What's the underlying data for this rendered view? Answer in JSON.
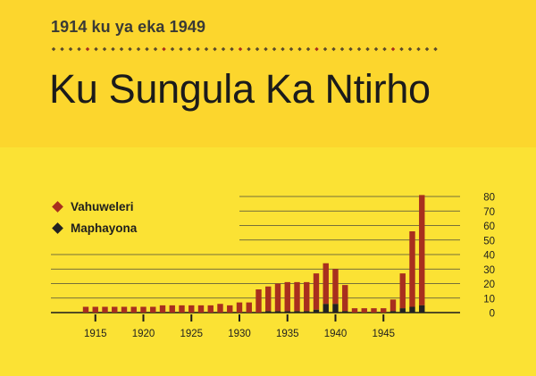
{
  "header": {
    "subtitle": "1914 ku ya eka 1949",
    "title": "Ku Sungula Ka Ntirho"
  },
  "colors": {
    "background": "#fbe234",
    "band": "#fcd62d",
    "ink": "#1b1b1b",
    "vahuweleri": "#a82f1e",
    "maphayona": "#222222"
  },
  "chart_data": {
    "type": "bar",
    "stacked": true,
    "x_axis": {
      "range": [
        1914,
        1949
      ],
      "tick_labels": [
        "1915",
        "1920",
        "1925",
        "1930",
        "1935",
        "1940",
        "1945"
      ],
      "tick_values": [
        1915,
        1920,
        1925,
        1930,
        1935,
        1940,
        1945
      ]
    },
    "y_axis": {
      "range": [
        0,
        80
      ],
      "tick_labels": [
        "0",
        "10",
        "20",
        "30",
        "40",
        "50",
        "60",
        "70",
        "80"
      ],
      "position": "right",
      "grid": true
    },
    "legend_position": "left",
    "x": [
      1914,
      1915,
      1916,
      1917,
      1918,
      1919,
      1920,
      1921,
      1922,
      1923,
      1924,
      1925,
      1926,
      1927,
      1928,
      1929,
      1930,
      1931,
      1932,
      1933,
      1934,
      1935,
      1936,
      1937,
      1938,
      1939,
      1940,
      1941,
      1942,
      1943,
      1944,
      1945,
      1946,
      1947,
      1948,
      1949
    ],
    "series": [
      {
        "name": "Vahuweleri",
        "values": [
          4,
          4,
          4,
          4,
          4,
          4,
          4,
          4,
          5,
          5,
          5,
          5,
          5,
          5,
          6,
          5,
          7,
          7,
          16,
          17,
          19,
          20,
          20,
          20,
          25,
          28,
          24,
          18,
          3,
          3,
          3,
          3,
          8,
          24,
          52,
          76
        ]
      },
      {
        "name": "Maphayona",
        "values": [
          0,
          0,
          0,
          0,
          0,
          0,
          0,
          0,
          0,
          0,
          0,
          0,
          0,
          0,
          0,
          0,
          0,
          0,
          0,
          1,
          1,
          1,
          1,
          1,
          2,
          6,
          6,
          1,
          0,
          0,
          0,
          0,
          1,
          3,
          4,
          5
        ]
      }
    ]
  }
}
